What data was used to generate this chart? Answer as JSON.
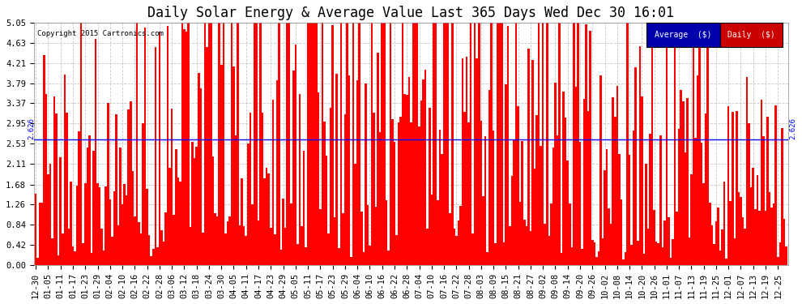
{
  "title": "Daily Solar Energy & Average Value Last 365 Days Wed Dec 30 16:01",
  "copyright": "Copyright 2015 Cartronics.com",
  "average_value": 2.626,
  "average_label": "2.626",
  "ylim": [
    0,
    5.05
  ],
  "yticks": [
    0.0,
    0.42,
    0.84,
    1.26,
    1.68,
    2.11,
    2.53,
    2.95,
    3.37,
    3.79,
    4.21,
    4.63,
    5.05
  ],
  "bar_color": "#FF0000",
  "average_line_color": "#0000FF",
  "background_color": "#FFFFFF",
  "grid_color": "#BBBBBB",
  "legend_avg_bg": "#0000AA",
  "legend_daily_bg": "#CC0000",
  "title_fontsize": 12,
  "tick_fontsize": 7.5,
  "x_tick_labels": [
    "12-30",
    "01-05",
    "01-11",
    "01-17",
    "01-23",
    "01-29",
    "02-04",
    "02-10",
    "02-16",
    "02-22",
    "02-28",
    "03-06",
    "03-12",
    "03-18",
    "03-24",
    "03-30",
    "04-05",
    "04-11",
    "04-17",
    "04-23",
    "04-29",
    "05-05",
    "05-11",
    "05-17",
    "05-23",
    "05-29",
    "06-04",
    "06-10",
    "06-16",
    "06-22",
    "06-28",
    "07-04",
    "07-10",
    "07-16",
    "07-22",
    "07-28",
    "08-03",
    "08-09",
    "08-15",
    "08-21",
    "08-27",
    "09-02",
    "09-08",
    "09-14",
    "09-20",
    "09-26",
    "10-02",
    "10-08",
    "10-14",
    "10-20",
    "10-26",
    "11-01",
    "11-07",
    "11-13",
    "11-19",
    "11-25",
    "12-01",
    "12-07",
    "12-13",
    "12-19",
    "12-25"
  ],
  "num_bars": 365,
  "seed": 12345
}
